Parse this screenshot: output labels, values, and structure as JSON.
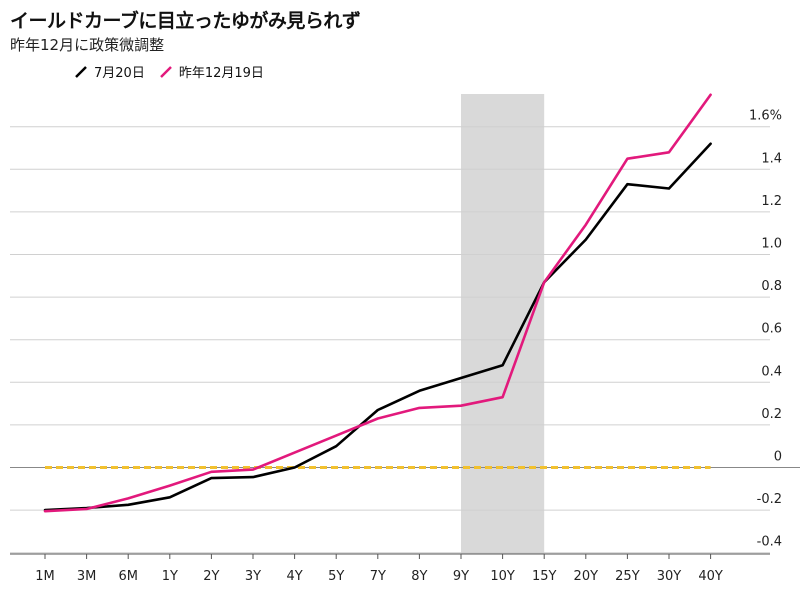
{
  "title": "イールドカーブに目立ったゆがみ見られず",
  "subtitle": "昨年12月に政策微調整",
  "chart_data": {
    "type": "line",
    "categories": [
      "1M",
      "3M",
      "6M",
      "1Y",
      "2Y",
      "3Y",
      "4Y",
      "5Y",
      "7Y",
      "8Y",
      "9Y",
      "10Y",
      "15Y",
      "20Y",
      "25Y",
      "30Y",
      "40Y"
    ],
    "series": [
      {
        "name": "7月20日",
        "color": "#000000",
        "values": [
          -0.2,
          -0.19,
          -0.175,
          -0.14,
          -0.05,
          -0.045,
          0.0,
          0.1,
          0.27,
          0.36,
          0.42,
          0.48,
          0.87,
          1.07,
          1.33,
          1.31,
          1.52
        ]
      },
      {
        "name": "昨年12月19日",
        "color": "#e2197c",
        "values": [
          -0.205,
          -0.195,
          -0.145,
          -0.085,
          -0.02,
          -0.01,
          0.07,
          0.15,
          0.23,
          0.28,
          0.29,
          0.33,
          0.87,
          1.14,
          1.45,
          1.48,
          1.75
        ]
      }
    ],
    "y_ticks": [
      "1.6%",
      "1.4",
      "1.2",
      "1.0",
      "0.8",
      "0.6",
      "0.4",
      "0.2",
      "0",
      "-0.2",
      "-0.4"
    ],
    "y_tick_values": [
      1.6,
      1.4,
      1.2,
      1.0,
      0.8,
      0.6,
      0.4,
      0.2,
      0,
      -0.2,
      -0.4
    ],
    "ylim": [
      -0.4,
      1.75
    ],
    "shaded_region": {
      "from": "9Y",
      "to": "15Y",
      "color": "#d9d9d9"
    },
    "zero_line": {
      "style": "dashed",
      "color": "#f2c12e"
    },
    "grid": true,
    "legend_position": "top-left"
  }
}
